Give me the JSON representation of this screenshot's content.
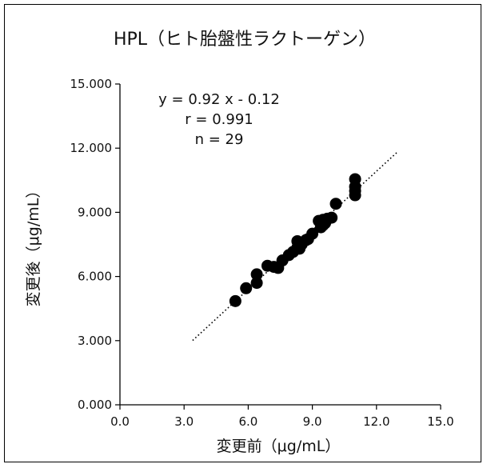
{
  "chart_data": {
    "type": "scatter",
    "title": "HPL（ヒト胎盤性ラクトーゲン）",
    "xlabel": "変更前（μg/mL）",
    "ylabel": "変更後（μg/mL）",
    "xlim": [
      0,
      15
    ],
    "ylim": [
      0,
      15
    ],
    "xticks": [
      "0.0",
      "3.0",
      "6.0",
      "9.0",
      "12.0",
      "15.0"
    ],
    "yticks": [
      "0.000",
      "3.000",
      "6.000",
      "9.000",
      "12.000",
      "15.000"
    ],
    "annotations": {
      "equation": "y = 0.92 x - 0.12",
      "r": "r = 0.991",
      "n": "n = 29"
    },
    "regression": {
      "slope": 0.92,
      "intercept": -0.12,
      "x_range": [
        3.4,
        13.0
      ],
      "style": "dotted"
    },
    "points": [
      [
        5.4,
        4.85
      ],
      [
        5.9,
        5.45
      ],
      [
        6.4,
        5.7
      ],
      [
        6.4,
        6.1
      ],
      [
        6.9,
        6.5
      ],
      [
        7.2,
        6.45
      ],
      [
        7.4,
        6.4
      ],
      [
        7.6,
        6.75
      ],
      [
        7.9,
        7.0
      ],
      [
        8.1,
        7.15
      ],
      [
        8.3,
        7.35
      ],
      [
        8.3,
        7.65
      ],
      [
        8.5,
        7.5
      ],
      [
        8.7,
        7.7
      ],
      [
        8.8,
        7.75
      ],
      [
        9.0,
        8.0
      ],
      [
        9.3,
        8.6
      ],
      [
        9.4,
        8.3
      ],
      [
        9.5,
        8.4
      ],
      [
        9.6,
        8.5
      ],
      [
        9.7,
        8.7
      ],
      [
        9.9,
        8.75
      ],
      [
        10.1,
        9.4
      ],
      [
        11.0,
        9.8
      ],
      [
        11.0,
        10.0
      ],
      [
        11.0,
        10.2
      ],
      [
        11.0,
        10.55
      ],
      [
        9.5,
        8.65
      ],
      [
        8.4,
        7.3
      ]
    ],
    "grid": false,
    "colors": {
      "points": "#000000",
      "axis": "#000000",
      "line": "#000000"
    }
  }
}
